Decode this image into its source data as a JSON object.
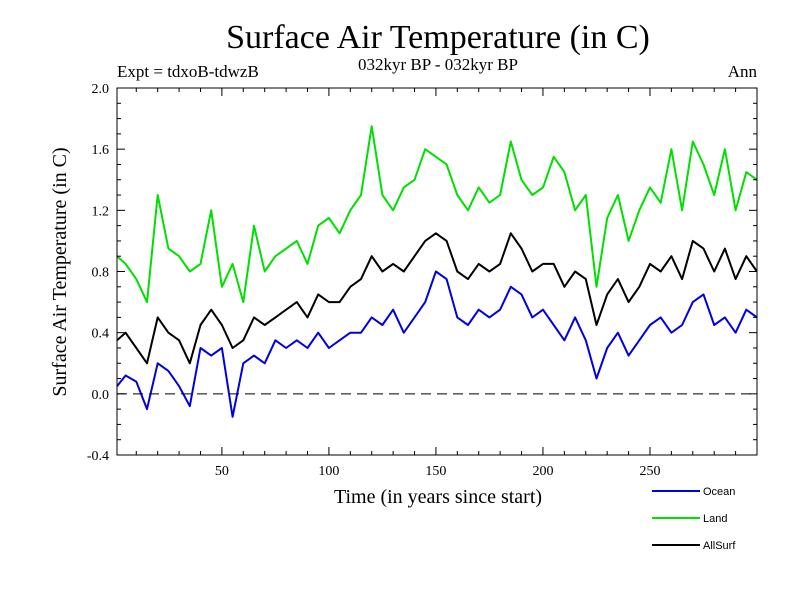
{
  "chart_data": {
    "type": "line",
    "title": "Surface Air Temperature (in C)",
    "subtitle": "032kyr BP - 032kyr BP",
    "left_note": "Expt = tdxoB-tdwzB",
    "right_note": "Ann",
    "xlabel": "Time (in years since start)",
    "ylabel": "Surface Air Temperature (in C)",
    "xlim": [
      1,
      300
    ],
    "ylim": [
      -0.4,
      2.0
    ],
    "x_ticks": [
      50,
      100,
      150,
      200,
      250
    ],
    "y_ticks": [
      "-0.4",
      "0.0",
      "0.4",
      "0.8",
      "1.2",
      "1.6",
      "2.0"
    ],
    "zero_line": "dashed",
    "grid": false,
    "legend_position": "bottom-right",
    "series": [
      {
        "name": "Ocean",
        "color": "#0000e0",
        "x": [
          1,
          5,
          10,
          15,
          20,
          25,
          30,
          35,
          40,
          45,
          50,
          55,
          60,
          65,
          70,
          75,
          80,
          85,
          90,
          95,
          100,
          105,
          110,
          115,
          120,
          125,
          130,
          135,
          140,
          145,
          150,
          155,
          160,
          165,
          170,
          175,
          180,
          185,
          190,
          195,
          200,
          205,
          210,
          215,
          220,
          225,
          230,
          235,
          240,
          245,
          250,
          255,
          260,
          265,
          270,
          275,
          280,
          285,
          290,
          295,
          300
        ],
        "values": [
          0.05,
          0.12,
          0.08,
          -0.1,
          0.2,
          0.15,
          0.05,
          -0.08,
          0.3,
          0.25,
          0.3,
          -0.15,
          0.2,
          0.25,
          0.2,
          0.35,
          0.3,
          0.35,
          0.3,
          0.4,
          0.3,
          0.35,
          0.4,
          0.4,
          0.5,
          0.45,
          0.55,
          0.4,
          0.5,
          0.6,
          0.8,
          0.75,
          0.5,
          0.45,
          0.55,
          0.5,
          0.55,
          0.7,
          0.65,
          0.5,
          0.55,
          0.45,
          0.35,
          0.5,
          0.35,
          0.1,
          0.3,
          0.4,
          0.25,
          0.35,
          0.45,
          0.5,
          0.4,
          0.45,
          0.6,
          0.65,
          0.45,
          0.5,
          0.4,
          0.55,
          0.5
        ]
      },
      {
        "name": "Land",
        "color": "#00e000",
        "x": [
          1,
          5,
          10,
          15,
          20,
          25,
          30,
          35,
          40,
          45,
          50,
          55,
          60,
          65,
          70,
          75,
          80,
          85,
          90,
          95,
          100,
          105,
          110,
          115,
          120,
          125,
          130,
          135,
          140,
          145,
          150,
          155,
          160,
          165,
          170,
          175,
          180,
          185,
          190,
          195,
          200,
          205,
          210,
          215,
          220,
          225,
          230,
          235,
          240,
          245,
          250,
          255,
          260,
          265,
          270,
          275,
          280,
          285,
          290,
          295,
          300
        ],
        "values": [
          0.9,
          0.85,
          0.75,
          0.6,
          1.3,
          0.95,
          0.9,
          0.8,
          0.85,
          1.2,
          0.7,
          0.85,
          0.6,
          1.1,
          0.8,
          0.9,
          0.95,
          1.0,
          0.85,
          1.1,
          1.15,
          1.05,
          1.2,
          1.3,
          1.75,
          1.3,
          1.2,
          1.35,
          1.4,
          1.6,
          1.55,
          1.5,
          1.3,
          1.2,
          1.35,
          1.25,
          1.3,
          1.65,
          1.4,
          1.3,
          1.35,
          1.55,
          1.45,
          1.2,
          1.3,
          0.7,
          1.15,
          1.3,
          1.0,
          1.2,
          1.35,
          1.25,
          1.6,
          1.2,
          1.65,
          1.5,
          1.3,
          1.6,
          1.2,
          1.45,
          1.4
        ]
      },
      {
        "name": "AllSurf",
        "color": "#000000",
        "x": [
          1,
          5,
          10,
          15,
          20,
          25,
          30,
          35,
          40,
          45,
          50,
          55,
          60,
          65,
          70,
          75,
          80,
          85,
          90,
          95,
          100,
          105,
          110,
          115,
          120,
          125,
          130,
          135,
          140,
          145,
          150,
          155,
          160,
          165,
          170,
          175,
          180,
          185,
          190,
          195,
          200,
          205,
          210,
          215,
          220,
          225,
          230,
          235,
          240,
          245,
          250,
          255,
          260,
          265,
          270,
          275,
          280,
          285,
          290,
          295,
          300
        ],
        "values": [
          0.35,
          0.4,
          0.3,
          0.2,
          0.5,
          0.4,
          0.35,
          0.2,
          0.45,
          0.55,
          0.45,
          0.3,
          0.35,
          0.5,
          0.45,
          0.5,
          0.55,
          0.6,
          0.5,
          0.65,
          0.6,
          0.6,
          0.7,
          0.75,
          0.9,
          0.8,
          0.85,
          0.8,
          0.9,
          1.0,
          1.05,
          1.0,
          0.8,
          0.75,
          0.85,
          0.8,
          0.85,
          1.05,
          0.95,
          0.8,
          0.85,
          0.85,
          0.7,
          0.8,
          0.75,
          0.45,
          0.65,
          0.75,
          0.6,
          0.7,
          0.85,
          0.8,
          0.9,
          0.75,
          1.0,
          0.95,
          0.8,
          0.95,
          0.75,
          0.9,
          0.8
        ]
      }
    ]
  }
}
